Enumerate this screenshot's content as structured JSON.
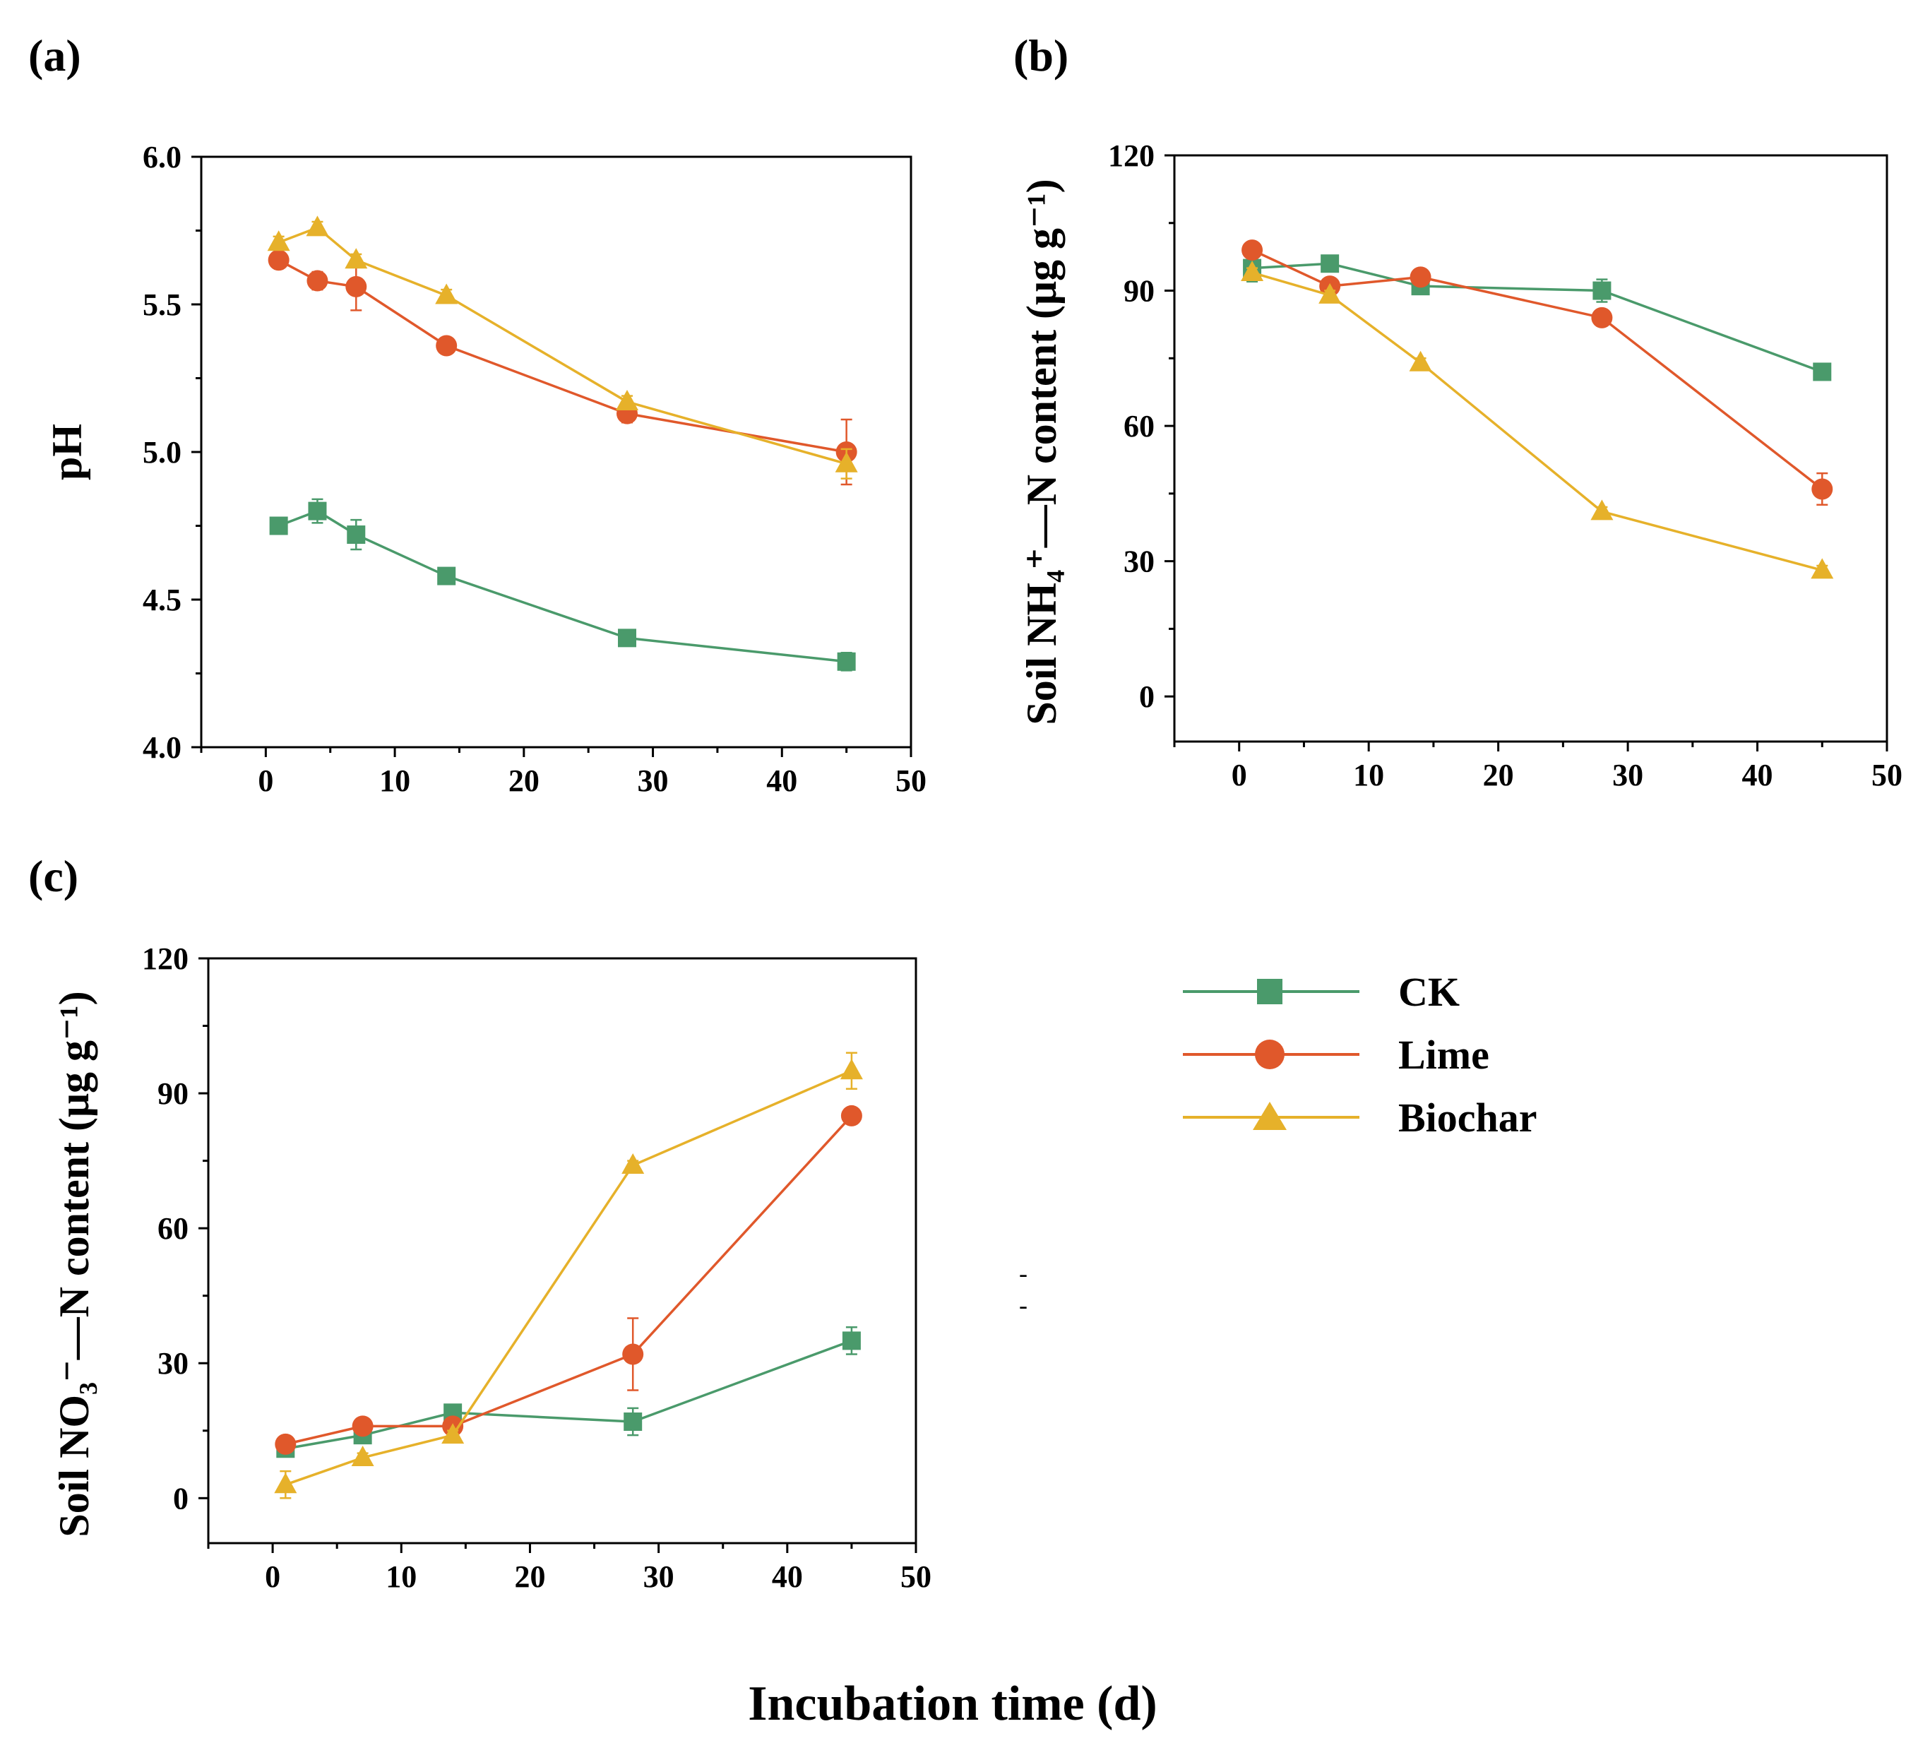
{
  "figure": {
    "xlabel": "Incubation time (d)",
    "stray_marks": [
      "-",
      "-"
    ]
  },
  "legend": [
    {
      "name": "CK",
      "color": "#4a9a6b",
      "marker": "square"
    },
    {
      "name": "Lime",
      "color": "#e0582b",
      "marker": "circle"
    },
    {
      "name": "Biochar",
      "color": "#e6b12a",
      "marker": "triangle"
    }
  ],
  "chart_data": [
    {
      "panel": "(a)",
      "type": "line",
      "title": "",
      "ylabel": "pH",
      "xlabel": "",
      "xlim": [
        -5,
        50
      ],
      "ylim": [
        4.0,
        6.0
      ],
      "xticks": [
        0,
        10,
        20,
        30,
        40,
        50
      ],
      "yticks": [
        4.0,
        4.5,
        5.0,
        5.5,
        6.0
      ],
      "ytick_labels": [
        "4.0",
        "4.5",
        "5.0",
        "5.5",
        "6.0"
      ],
      "series": [
        {
          "name": "CK",
          "x": [
            1,
            4,
            7,
            14,
            28,
            45
          ],
          "y": [
            4.75,
            4.8,
            4.72,
            4.58,
            4.37,
            4.29
          ],
          "err": [
            0.02,
            0.04,
            0.05,
            0.01,
            0.01,
            0.03
          ]
        },
        {
          "name": "Lime",
          "x": [
            1,
            4,
            7,
            14,
            28,
            45
          ],
          "y": [
            5.65,
            5.58,
            5.56,
            5.36,
            5.13,
            5.0
          ],
          "err": [
            0.02,
            0.03,
            0.08,
            0.02,
            0.03,
            0.11
          ]
        },
        {
          "name": "Biochar",
          "x": [
            1,
            4,
            7,
            14,
            28,
            45
          ],
          "y": [
            5.71,
            5.76,
            5.65,
            5.53,
            5.17,
            4.96
          ],
          "err": [
            0.02,
            0.02,
            0.02,
            0.02,
            0.02,
            0.05
          ]
        }
      ]
    },
    {
      "panel": "(b)",
      "type": "line",
      "title": "",
      "ylabel": "Soil NH₄⁺—N content (μg g⁻¹)",
      "xlabel": "",
      "xlim": [
        -5,
        50
      ],
      "ylim": [
        -10,
        120
      ],
      "xticks": [
        0,
        10,
        20,
        30,
        40,
        50
      ],
      "yticks": [
        0,
        30,
        60,
        90,
        120
      ],
      "ytick_labels": [
        "0",
        "30",
        "60",
        "90",
        "120"
      ],
      "series": [
        {
          "name": "CK",
          "x": [
            1,
            7,
            14,
            28,
            45
          ],
          "y": [
            95,
            96,
            91,
            90,
            72
          ],
          "err": [
            3,
            1,
            1,
            2.5,
            1
          ]
        },
        {
          "name": "Lime",
          "x": [
            1,
            7,
            14,
            28,
            45
          ],
          "y": [
            99,
            91,
            93,
            84,
            46
          ],
          "err": [
            1,
            1,
            1,
            1,
            3.5
          ]
        },
        {
          "name": "Biochar",
          "x": [
            1,
            7,
            14,
            28,
            45
          ],
          "y": [
            94,
            89,
            74,
            41,
            28
          ],
          "err": [
            1,
            1,
            1,
            1,
            1
          ]
        }
      ]
    },
    {
      "panel": "(c)",
      "type": "line",
      "title": "",
      "ylabel": "Soil NO₃⁻—N content (μg g⁻¹)",
      "xlabel": "",
      "xlim": [
        -5,
        50
      ],
      "ylim": [
        -10,
        120
      ],
      "xticks": [
        0,
        10,
        20,
        30,
        40,
        50
      ],
      "yticks": [
        0,
        30,
        60,
        90,
        120
      ],
      "ytick_labels": [
        "0",
        "30",
        "60",
        "90",
        "120"
      ],
      "series": [
        {
          "name": "CK",
          "x": [
            1,
            7,
            14,
            28,
            45
          ],
          "y": [
            11,
            14,
            19,
            17,
            35
          ],
          "err": [
            1,
            1,
            1,
            3,
            3
          ]
        },
        {
          "name": "Lime",
          "x": [
            1,
            7,
            14,
            28,
            45
          ],
          "y": [
            12,
            16,
            16,
            32,
            85
          ],
          "err": [
            1,
            1,
            1,
            8,
            1
          ]
        },
        {
          "name": "Biochar",
          "x": [
            1,
            7,
            14,
            28,
            45
          ],
          "y": [
            3,
            9,
            14,
            74,
            95
          ],
          "err": [
            3,
            1,
            1,
            1,
            4
          ]
        }
      ]
    }
  ]
}
